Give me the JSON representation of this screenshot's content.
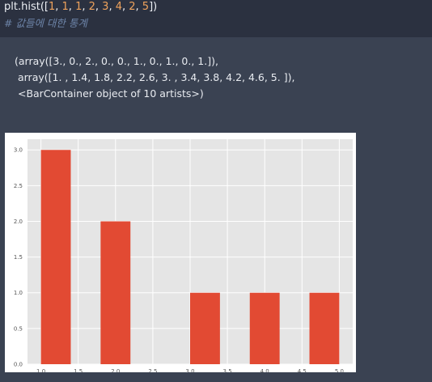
{
  "code": {
    "prefix": "plt.hist([",
    "numbers": [
      "1",
      "1",
      "1",
      "2",
      "3",
      "4",
      "2",
      "5"
    ],
    "suffix": "])",
    "comment": "# 값들에 대한 통계"
  },
  "output": {
    "lines": [
      "(array([3., 0., 2., 0., 0., 1., 0., 1., 0., 1.]),",
      " array([1. , 1.4, 1.8, 2.2, 2.6, 3. , 3.4, 3.8, 4.2, 4.6, 5. ]),",
      " <BarContainer object of 10 artists>)"
    ]
  },
  "chart_data": {
    "type": "bar",
    "bin_edges": [
      1.0,
      1.4,
      1.8,
      2.2,
      2.6,
      3.0,
      3.4,
      3.8,
      4.2,
      4.6,
      5.0
    ],
    "counts": [
      3,
      0,
      2,
      0,
      0,
      1,
      0,
      1,
      0,
      1
    ],
    "xlim": [
      0.82,
      5.18
    ],
    "ylim": [
      0,
      3.15
    ],
    "xticks": [
      "1.0",
      "1.5",
      "2.0",
      "2.5",
      "3.0",
      "3.5",
      "4.0",
      "4.5",
      "5.0"
    ],
    "yticks": [
      "0.0",
      "0.5",
      "1.0",
      "1.5",
      "2.0",
      "2.5",
      "3.0"
    ],
    "grid": true,
    "bar_color": "#e24a33",
    "background_color": "#e5e5e5",
    "grid_color": "#ffffff"
  }
}
